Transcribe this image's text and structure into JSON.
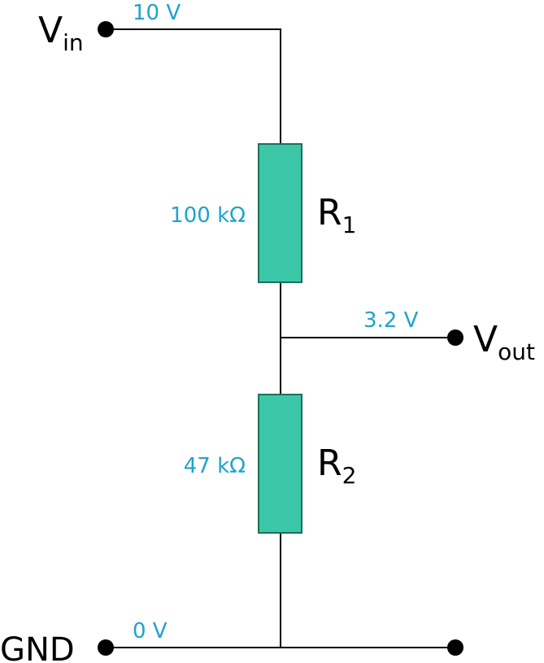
{
  "diagram": {
    "colors": {
      "wire": "#000000",
      "resistor_fill": "#3cc8a8",
      "resistor_stroke": "#1e6e5a",
      "value_text": "#1fa3cc"
    },
    "input": {
      "label_main": "V",
      "label_sub": "in",
      "voltage": "10 V"
    },
    "output": {
      "label_main": "V",
      "label_sub": "out",
      "voltage": "3.2 V"
    },
    "ground": {
      "label": "GND",
      "voltage": "0 V"
    },
    "resistors": [
      {
        "label_main": "R",
        "label_sub": "1",
        "value": "100 kΩ"
      },
      {
        "label_main": "R",
        "label_sub": "2",
        "value": "47 kΩ"
      }
    ]
  }
}
